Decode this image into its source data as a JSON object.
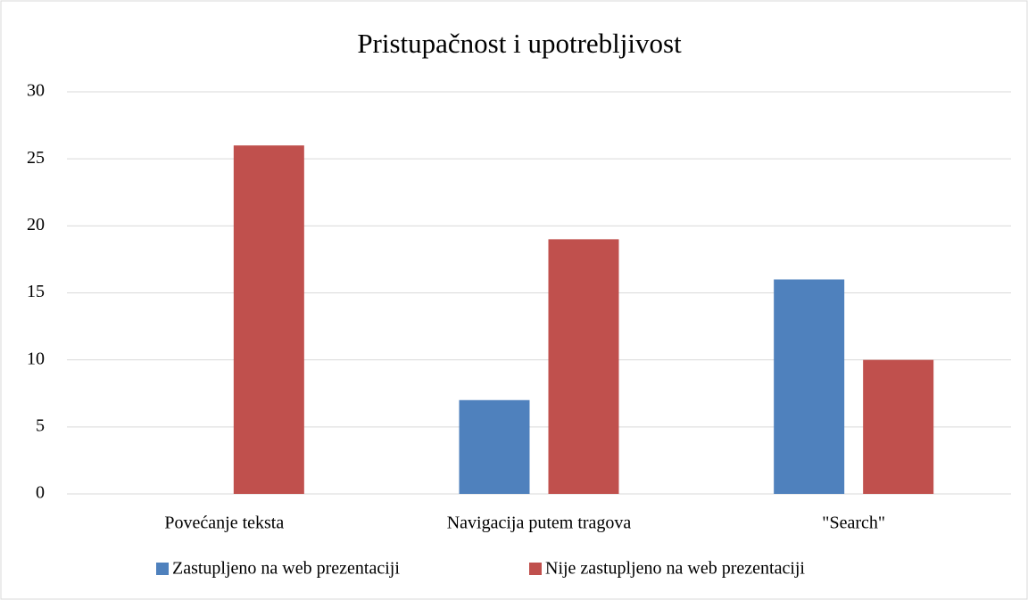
{
  "chart_data": {
    "type": "bar",
    "title": "Pristupačnost i upotrebljivost",
    "categories": [
      "Povećanje teksta",
      "Navigacija putem tragova",
      "\"Search\""
    ],
    "series": [
      {
        "name": "Zastupljeno na web prezentaciji",
        "color": "#4f81bd",
        "values": [
          0,
          7,
          16
        ]
      },
      {
        "name": "Nije zastupljeno na web prezentaciji",
        "color": "#c0504d",
        "values": [
          26,
          19,
          10
        ]
      }
    ],
    "ylim": [
      0,
      30
    ],
    "yticks": [
      0,
      5,
      10,
      15,
      20,
      25,
      30
    ],
    "grid": true,
    "legend": "bottom"
  }
}
